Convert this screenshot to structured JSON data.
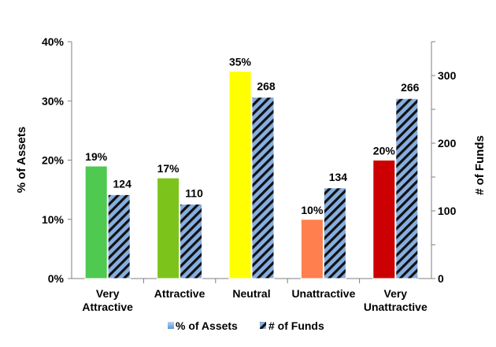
{
  "chart_data": {
    "type": "bar",
    "categories": [
      [
        "Very",
        "Attractive"
      ],
      [
        "Attractive"
      ],
      [
        "Neutral"
      ],
      [
        "Unattractive"
      ],
      [
        "Very",
        "Unattractive"
      ]
    ],
    "series": [
      {
        "name": "% of Assets",
        "axis": "left",
        "values": [
          19,
          17,
          35,
          10,
          20
        ],
        "labels": [
          "19%",
          "17%",
          "35%",
          "10%",
          "20%"
        ],
        "colors": [
          "#4fc94f",
          "#7cc41c",
          "#ffff00",
          "#ff7f4f",
          "#cc0000"
        ]
      },
      {
        "name": "# of Funds",
        "axis": "right",
        "values": [
          124,
          110,
          268,
          134,
          266
        ],
        "labels": [
          "124",
          "110",
          "268",
          "134",
          "266"
        ],
        "pattern": "diagonal-stripes-blue-black"
      }
    ],
    "ylabel": "% of Assets",
    "ylim": [
      0,
      40
    ],
    "yticks": [
      "0%",
      "10%",
      "20%",
      "30%",
      "40%"
    ],
    "y2label": "# of Funds",
    "y2lim": [
      0,
      350
    ],
    "y2ticks": [
      "0",
      "100",
      "200",
      "300"
    ],
    "grid": false,
    "legend": "bottom-center",
    "legend_entries": [
      "% of Assets",
      "# of Funds"
    ]
  }
}
